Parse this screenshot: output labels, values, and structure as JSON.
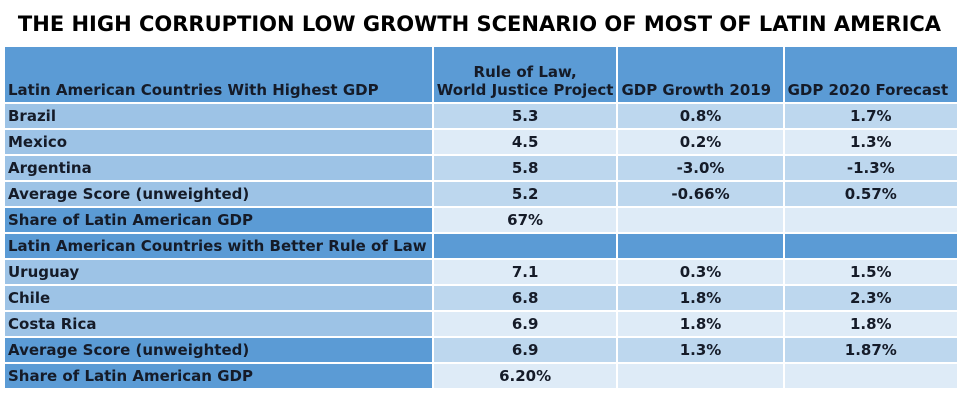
{
  "title": "THE HIGH CORRUPTION LOW GROWTH SCENARIO OF MOST OF LATIN AMERICA",
  "colors": {
    "header_blue": "#5b9bd5",
    "label_blue": "#9dc3e6",
    "band_blue": "#bdd7ee",
    "light_blue": "#deebf7"
  },
  "header": {
    "col1": "Latin American Countries With Highest GDP",
    "col2_line1": "Rule of Law,",
    "col2_line2": "World Justice Project",
    "col3": "GDP Growth 2019",
    "col4": "GDP 2020 Forecast"
  },
  "rows": [
    {
      "label": "Brazil",
      "rule_of_law": "5.3",
      "gdp_2019": "0.8%",
      "gdp_2020": "1.7%"
    },
    {
      "label": "Mexico",
      "rule_of_law": "4.5",
      "gdp_2019": "0.2%",
      "gdp_2020": "1.3%"
    },
    {
      "label": "Argentina",
      "rule_of_law": "5.8",
      "gdp_2019": "-3.0%",
      "gdp_2020": "-1.3%"
    },
    {
      "label": "Average Score (unweighted)",
      "rule_of_law": "5.2",
      "gdp_2019": "-0.66%",
      "gdp_2020": "0.57%"
    },
    {
      "label": "Share of Latin American GDP",
      "rule_of_law": "67%",
      "gdp_2019": "",
      "gdp_2020": ""
    },
    {
      "label": "Latin American Countries with Better Rule of Law",
      "rule_of_law": "",
      "gdp_2019": "",
      "gdp_2020": ""
    },
    {
      "label": "Uruguay",
      "rule_of_law": "7.1",
      "gdp_2019": "0.3%",
      "gdp_2020": "1.5%"
    },
    {
      "label": "Chile",
      "rule_of_law": "6.8",
      "gdp_2019": "1.8%",
      "gdp_2020": "2.3%"
    },
    {
      "label": "Costa Rica",
      "rule_of_law": "6.9",
      "gdp_2019": "1.8%",
      "gdp_2020": "1.8%"
    },
    {
      "label": "Average Score (unweighted)",
      "rule_of_law": "6.9",
      "gdp_2019": "1.3%",
      "gdp_2020": "1.87%"
    },
    {
      "label": "Share of Latin American GDP",
      "rule_of_law": "6.20%",
      "gdp_2019": "",
      "gdp_2020": ""
    }
  ]
}
